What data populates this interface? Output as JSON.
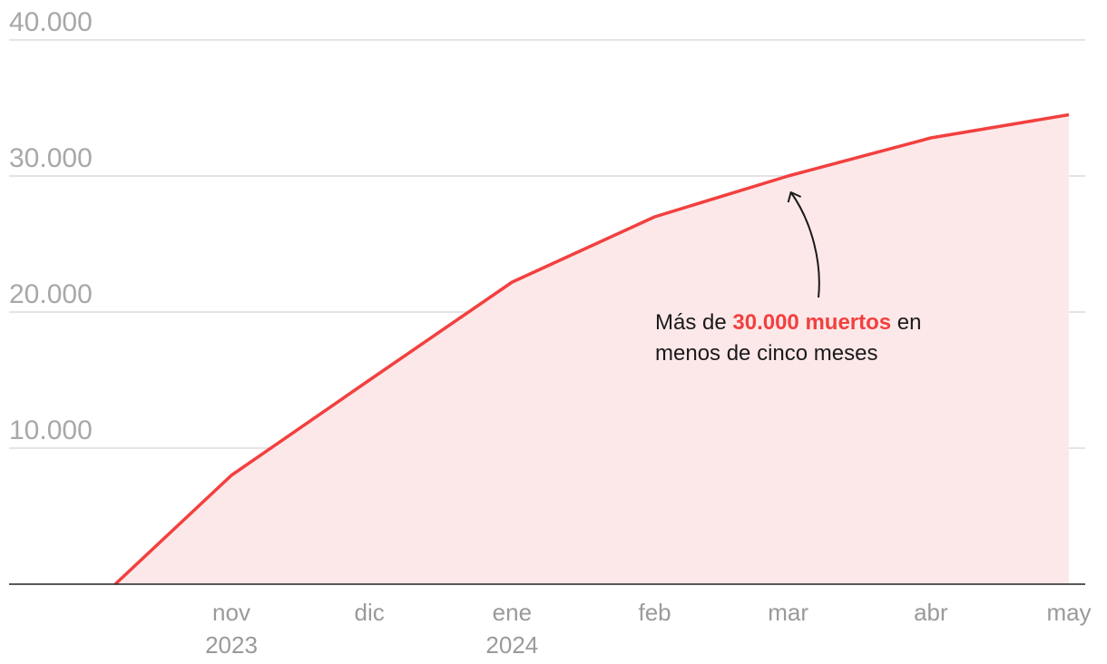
{
  "chart_data": {
    "type": "area",
    "x": [
      "2023-10-07",
      "2023-11-01",
      "2023-12-01",
      "2024-01-01",
      "2024-02-01",
      "2024-03-01",
      "2024-04-01",
      "2024-05-01"
    ],
    "values": [
      0,
      8000,
      15000,
      22200,
      27000,
      30000,
      32800,
      34500
    ],
    "ylim": [
      0,
      40000
    ],
    "y_ticks": [
      "10.000",
      "20.000",
      "30.000",
      "40.000"
    ],
    "x_ticks": [
      {
        "label": "nov",
        "year": "2023",
        "date": "2023-11-01"
      },
      {
        "label": "dic",
        "year": "",
        "date": "2023-12-01"
      },
      {
        "label": "ene",
        "year": "2024",
        "date": "2024-01-01"
      },
      {
        "label": "feb",
        "year": "",
        "date": "2024-02-01"
      },
      {
        "label": "mar",
        "year": "",
        "date": "2024-03-01"
      },
      {
        "label": "abr",
        "year": "",
        "date": "2024-04-01"
      },
      {
        "label": "may",
        "year": "",
        "date": "2024-05-01"
      }
    ],
    "grid": true,
    "colors": {
      "line": "#f2403f",
      "fill": "#fde8e9",
      "grid": "#dcdcdc",
      "axis": "#222222"
    },
    "annotation": {
      "prefix": "Más de ",
      "highlight": "30.000 muertos",
      "suffix": " en",
      "line2": "menos de cinco meses",
      "target_date": "2024-03-01",
      "target_value": 30000
    }
  }
}
